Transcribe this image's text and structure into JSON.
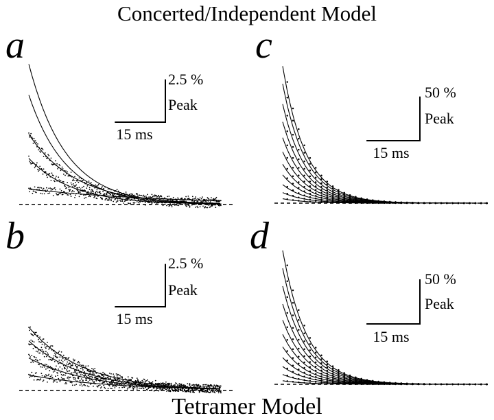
{
  "figure": {
    "top_title": "Concerted/Independent Model",
    "bottom_title": "Tetramer Model"
  },
  "colors": {
    "ink": "#000000",
    "background": "#ffffff"
  },
  "chart_data": [
    {
      "type": "line",
      "panel": "a",
      "x_range_ms": [
        0,
        57
      ],
      "y_range_pct_peak": [
        0,
        8.5
      ],
      "baseline": "dashed",
      "grid": false,
      "scale_bar": {
        "x_value": 15,
        "x_label": "15 ms",
        "y_value": 2.5,
        "y_label_value": "2.5 %",
        "y_label_unit": "Peak"
      },
      "series": [
        {
          "amplitude": 8.2,
          "tau_ms": 11,
          "fit_line": true,
          "points": false
        },
        {
          "amplitude": 6.4,
          "tau_ms": 11,
          "fit_line": true,
          "points": false
        },
        {
          "amplitude": 4.1,
          "tau_ms": 14,
          "fit_line": true,
          "points": true
        },
        {
          "amplitude": 2.7,
          "tau_ms": 13,
          "fit_line": true,
          "points": true
        },
        {
          "amplitude": 0.9,
          "tau_ms": 40,
          "fit_line": true,
          "points": true
        }
      ]
    },
    {
      "type": "line",
      "panel": "b",
      "x_range_ms": [
        0,
        57
      ],
      "y_range_pct_peak": [
        0,
        8.5
      ],
      "baseline": "dashed",
      "grid": false,
      "scale_bar": {
        "x_value": 15,
        "x_label": "15 ms",
        "y_value": 2.5,
        "y_label_value": "2.5 %",
        "y_label_unit": "Peak"
      },
      "series": [
        {
          "amplitude": 3.7,
          "tau_ms": 16,
          "fit_line": true,
          "points": true
        },
        {
          "amplitude": 2.9,
          "tau_ms": 16,
          "fit_line": true,
          "points": true
        },
        {
          "amplitude": 1.9,
          "tau_ms": 18,
          "fit_line": true,
          "points": true
        },
        {
          "amplitude": 0.9,
          "tau_ms": 25,
          "fit_line": true,
          "points": true
        }
      ]
    },
    {
      "type": "line",
      "panel": "c",
      "x_range_ms": [
        0,
        57
      ],
      "y_range_pct_peak": [
        0,
        160
      ],
      "baseline": "dashed",
      "grid": false,
      "scale_bar": {
        "x_value": 15,
        "x_label": "15 ms",
        "y_value": 50,
        "y_label_value": "50 %",
        "y_label_unit": "Peak"
      },
      "series": [
        {
          "amplitude": 155,
          "tau_ms": 6.5,
          "fit_line": true,
          "points": true
        },
        {
          "amplitude": 135,
          "tau_ms": 6.5,
          "fit_line": true,
          "points": true
        },
        {
          "amplitude": 112,
          "tau_ms": 6.5,
          "fit_line": true,
          "points": true
        },
        {
          "amplitude": 92,
          "tau_ms": 6.5,
          "fit_line": true,
          "points": true
        },
        {
          "amplitude": 74,
          "tau_ms": 6.5,
          "fit_line": true,
          "points": true
        },
        {
          "amplitude": 58,
          "tau_ms": 6.5,
          "fit_line": true,
          "points": true
        },
        {
          "amplitude": 44,
          "tau_ms": 6.5,
          "fit_line": true,
          "points": true
        },
        {
          "amplitude": 32,
          "tau_ms": 6.5,
          "fit_line": true,
          "points": true
        },
        {
          "amplitude": 21,
          "tau_ms": 6.5,
          "fit_line": true,
          "points": true
        },
        {
          "amplitude": 12,
          "tau_ms": 6.5,
          "fit_line": true,
          "points": true
        },
        {
          "amplitude": 5,
          "tau_ms": 6.5,
          "fit_line": true,
          "points": true
        }
      ]
    },
    {
      "type": "line",
      "panel": "d",
      "x_range_ms": [
        0,
        57
      ],
      "y_range_pct_peak": [
        0,
        160
      ],
      "baseline": "dashed",
      "grid": false,
      "scale_bar": {
        "x_value": 15,
        "x_label": "15 ms",
        "y_value": 50,
        "y_label_value": "50 %",
        "y_label_unit": "Peak"
      },
      "series": [
        {
          "amplitude": 150,
          "tau_ms": 6.8,
          "fit_line": true,
          "points": true
        },
        {
          "amplitude": 130,
          "tau_ms": 6.8,
          "fit_line": true,
          "points": true
        },
        {
          "amplitude": 110,
          "tau_ms": 6.8,
          "fit_line": true,
          "points": true
        },
        {
          "amplitude": 90,
          "tau_ms": 6.8,
          "fit_line": true,
          "points": true
        },
        {
          "amplitude": 72,
          "tau_ms": 6.8,
          "fit_line": true,
          "points": true
        },
        {
          "amplitude": 56,
          "tau_ms": 6.8,
          "fit_line": true,
          "points": true
        },
        {
          "amplitude": 42,
          "tau_ms": 6.8,
          "fit_line": true,
          "points": true
        },
        {
          "amplitude": 30,
          "tau_ms": 6.8,
          "fit_line": true,
          "points": true
        },
        {
          "amplitude": 20,
          "tau_ms": 6.8,
          "fit_line": true,
          "points": true
        },
        {
          "amplitude": 11,
          "tau_ms": 6.8,
          "fit_line": true,
          "points": true
        },
        {
          "amplitude": 4,
          "tau_ms": 6.8,
          "fit_line": true,
          "points": true
        }
      ]
    }
  ]
}
